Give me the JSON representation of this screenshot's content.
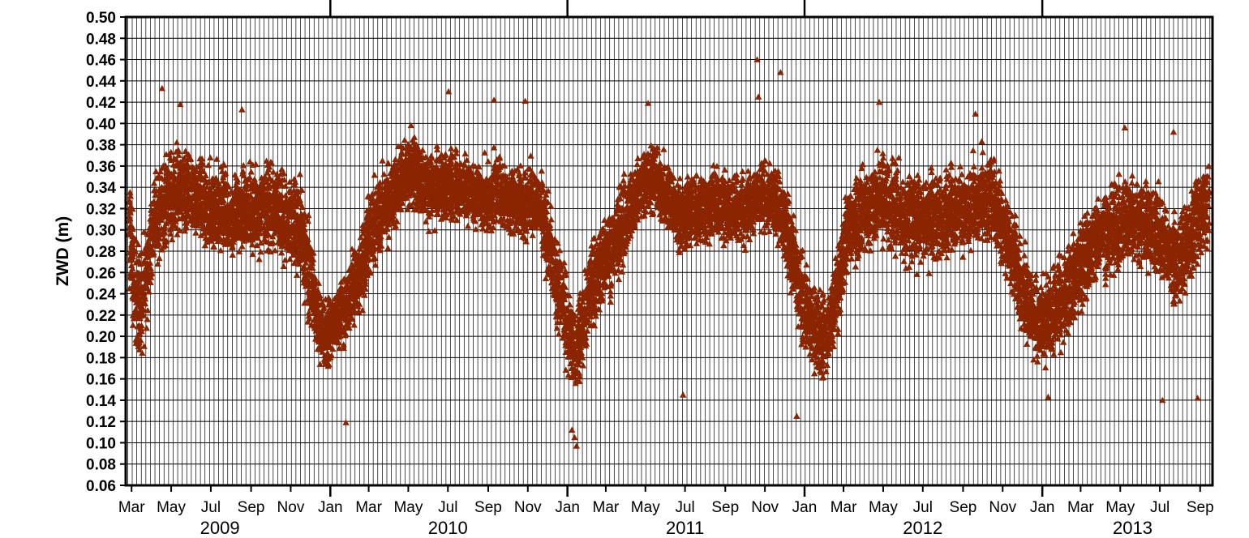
{
  "chart_data": {
    "type": "scatter",
    "ylabel": "ZWD (m)",
    "ylim": [
      0.06,
      0.5
    ],
    "yticks": [
      "0.06",
      "0.08",
      "0.10",
      "0.12",
      "0.14",
      "0.16",
      "0.18",
      "0.20",
      "0.22",
      "0.24",
      "0.26",
      "0.28",
      "0.30",
      "0.32",
      "0.34",
      "0.36",
      "0.38",
      "0.40",
      "0.42",
      "0.44",
      "0.46",
      "0.48",
      "0.50"
    ],
    "xlim": [
      "2009-02-20",
      "2013-09-20"
    ],
    "month_ticks": [
      {
        "date": "2009-03-01",
        "label": "Mar"
      },
      {
        "date": "2009-05-01",
        "label": "May"
      },
      {
        "date": "2009-07-01",
        "label": "Jul"
      },
      {
        "date": "2009-09-01",
        "label": "Sep"
      },
      {
        "date": "2009-11-01",
        "label": "Nov"
      },
      {
        "date": "2010-01-01",
        "label": "Jan"
      },
      {
        "date": "2010-03-01",
        "label": "Mar"
      },
      {
        "date": "2010-05-01",
        "label": "May"
      },
      {
        "date": "2010-07-01",
        "label": "Jul"
      },
      {
        "date": "2010-09-01",
        "label": "Sep"
      },
      {
        "date": "2010-11-01",
        "label": "Nov"
      },
      {
        "date": "2011-01-01",
        "label": "Jan"
      },
      {
        "date": "2011-03-01",
        "label": "Mar"
      },
      {
        "date": "2011-05-01",
        "label": "May"
      },
      {
        "date": "2011-07-01",
        "label": "Jul"
      },
      {
        "date": "2011-09-01",
        "label": "Sep"
      },
      {
        "date": "2011-11-01",
        "label": "Nov"
      },
      {
        "date": "2012-01-01",
        "label": "Jan"
      },
      {
        "date": "2012-03-01",
        "label": "Mar"
      },
      {
        "date": "2012-05-01",
        "label": "May"
      },
      {
        "date": "2012-07-01",
        "label": "Jul"
      },
      {
        "date": "2012-09-01",
        "label": "Sep"
      },
      {
        "date": "2012-11-01",
        "label": "Nov"
      },
      {
        "date": "2013-01-01",
        "label": "Jan"
      },
      {
        "date": "2013-03-01",
        "label": "Mar"
      },
      {
        "date": "2013-05-01",
        "label": "May"
      },
      {
        "date": "2013-07-01",
        "label": "Jul"
      },
      {
        "date": "2013-09-01",
        "label": "Sep"
      }
    ],
    "year_labels": [
      {
        "date": "2009-07-15",
        "label": "2009"
      },
      {
        "date": "2010-07-01",
        "label": "2010"
      },
      {
        "date": "2011-07-01",
        "label": "2011"
      },
      {
        "date": "2012-07-01",
        "label": "2012"
      },
      {
        "date": "2013-05-20",
        "label": "2013"
      }
    ],
    "grid": true,
    "marker": "triangle",
    "marker_color": "#8b2500",
    "series": [
      {
        "x": [
          "2009-02-25",
          "2009-03-05",
          "2009-03-15",
          "2009-03-25",
          "2009-04-05",
          "2009-04-15",
          "2009-04-25",
          "2009-05-05",
          "2009-05-15",
          "2009-05-25",
          "2009-06-05",
          "2009-06-15",
          "2009-06-25",
          "2009-07-05",
          "2009-07-15",
          "2009-07-25",
          "2009-08-05",
          "2009-08-15",
          "2009-08-25",
          "2009-09-05",
          "2009-09-15",
          "2009-09-25",
          "2009-10-05",
          "2009-10-15",
          "2009-10-25",
          "2009-11-05",
          "2009-11-15",
          "2009-11-25",
          "2009-12-05",
          "2009-12-15",
          "2009-12-25",
          "2010-01-05",
          "2010-01-15",
          "2010-01-25",
          "2010-02-05",
          "2010-02-15",
          "2010-02-25",
          "2010-03-05",
          "2010-03-15",
          "2010-03-25",
          "2010-04-05",
          "2010-04-15",
          "2010-04-25",
          "2010-05-05",
          "2010-05-15",
          "2010-05-25",
          "2010-06-05",
          "2010-06-15",
          "2010-06-25",
          "2010-07-05",
          "2010-07-15",
          "2010-07-25",
          "2010-08-05",
          "2010-08-15",
          "2010-08-25",
          "2010-09-05",
          "2010-09-15",
          "2010-09-25",
          "2010-10-05",
          "2010-10-15",
          "2010-10-25",
          "2010-11-05",
          "2010-11-15",
          "2010-11-25",
          "2010-12-05",
          "2010-12-15",
          "2010-12-25",
          "2011-01-05",
          "2011-01-15",
          "2011-01-25",
          "2011-02-05",
          "2011-02-15",
          "2011-02-25",
          "2011-03-05",
          "2011-03-15",
          "2011-03-25",
          "2011-04-05",
          "2011-04-15",
          "2011-04-25",
          "2011-05-05",
          "2011-05-15",
          "2011-05-25",
          "2011-06-05",
          "2011-06-15",
          "2011-06-25",
          "2011-07-05",
          "2011-07-15",
          "2011-07-25",
          "2011-08-05",
          "2011-08-15",
          "2011-08-25",
          "2011-09-05",
          "2011-09-15",
          "2011-09-25",
          "2011-10-05",
          "2011-10-15",
          "2011-10-25",
          "2011-11-05",
          "2011-11-15",
          "2011-11-25",
          "2011-12-05",
          "2011-12-15",
          "2011-12-25",
          "2012-01-05",
          "2012-01-15",
          "2012-01-25",
          "2012-02-05",
          "2012-02-15",
          "2012-02-25",
          "2012-03-05",
          "2012-03-15",
          "2012-03-25",
          "2012-04-05",
          "2012-04-15",
          "2012-04-25",
          "2012-05-05",
          "2012-05-15",
          "2012-05-25",
          "2012-06-05",
          "2012-06-15",
          "2012-06-25",
          "2012-07-05",
          "2012-07-15",
          "2012-07-25",
          "2012-08-05",
          "2012-08-15",
          "2012-08-25",
          "2012-09-05",
          "2012-09-15",
          "2012-09-25",
          "2012-10-05",
          "2012-10-15",
          "2012-10-25",
          "2012-11-05",
          "2012-11-15",
          "2012-11-25",
          "2012-12-05",
          "2012-12-15",
          "2012-12-25",
          "2013-01-05",
          "2013-01-15",
          "2013-01-25",
          "2013-02-05",
          "2013-02-15",
          "2013-02-25",
          "2013-03-05",
          "2013-03-15",
          "2013-03-25",
          "2013-04-05",
          "2013-04-15",
          "2013-04-25",
          "2013-05-05",
          "2013-05-15",
          "2013-05-25",
          "2013-06-05",
          "2013-06-15",
          "2013-06-25",
          "2013-07-05",
          "2013-07-15",
          "2013-07-25",
          "2013-08-05",
          "2013-08-15",
          "2013-08-25",
          "2013-09-05",
          "2013-09-15"
        ],
        "y_center": [
          0.3,
          0.25,
          0.23,
          0.26,
          0.31,
          0.32,
          0.33,
          0.33,
          0.34,
          0.33,
          0.33,
          0.33,
          0.32,
          0.32,
          0.32,
          0.32,
          0.31,
          0.32,
          0.32,
          0.32,
          0.32,
          0.32,
          0.32,
          0.32,
          0.31,
          0.31,
          0.3,
          0.27,
          0.24,
          0.21,
          0.2,
          0.21,
          0.22,
          0.23,
          0.24,
          0.26,
          0.28,
          0.3,
          0.31,
          0.32,
          0.33,
          0.34,
          0.35,
          0.36,
          0.35,
          0.34,
          0.34,
          0.34,
          0.34,
          0.34,
          0.34,
          0.34,
          0.34,
          0.33,
          0.33,
          0.33,
          0.34,
          0.33,
          0.33,
          0.33,
          0.32,
          0.33,
          0.33,
          0.31,
          0.28,
          0.25,
          0.23,
          0.2,
          0.19,
          0.21,
          0.24,
          0.26,
          0.27,
          0.28,
          0.29,
          0.3,
          0.32,
          0.33,
          0.34,
          0.35,
          0.35,
          0.34,
          0.33,
          0.32,
          0.31,
          0.32,
          0.32,
          0.32,
          0.32,
          0.33,
          0.32,
          0.32,
          0.32,
          0.32,
          0.32,
          0.33,
          0.33,
          0.33,
          0.33,
          0.32,
          0.3,
          0.27,
          0.24,
          0.22,
          0.21,
          0.2,
          0.2,
          0.23,
          0.26,
          0.29,
          0.31,
          0.31,
          0.32,
          0.32,
          0.33,
          0.33,
          0.32,
          0.32,
          0.31,
          0.31,
          0.31,
          0.31,
          0.31,
          0.31,
          0.31,
          0.32,
          0.32,
          0.32,
          0.32,
          0.33,
          0.33,
          0.33,
          0.32,
          0.3,
          0.28,
          0.26,
          0.24,
          0.23,
          0.21,
          0.21,
          0.22,
          0.23,
          0.24,
          0.25,
          0.26,
          0.27,
          0.28,
          0.29,
          0.3,
          0.3,
          0.3,
          0.31,
          0.31,
          0.31,
          0.31,
          0.3,
          0.3,
          0.29,
          0.28,
          0.27,
          0.28,
          0.29,
          0.31,
          0.32,
          0.32
        ],
        "y_spread": [
          0.06,
          0.07,
          0.06,
          0.06,
          0.05,
          0.05,
          0.05,
          0.05,
          0.05,
          0.05,
          0.05,
          0.05,
          0.05,
          0.05,
          0.05,
          0.05,
          0.05,
          0.05,
          0.05,
          0.05,
          0.05,
          0.05,
          0.05,
          0.05,
          0.05,
          0.05,
          0.06,
          0.06,
          0.05,
          0.04,
          0.04,
          0.04,
          0.04,
          0.04,
          0.05,
          0.05,
          0.05,
          0.05,
          0.05,
          0.05,
          0.04,
          0.04,
          0.04,
          0.04,
          0.04,
          0.04,
          0.04,
          0.04,
          0.04,
          0.04,
          0.04,
          0.04,
          0.04,
          0.04,
          0.04,
          0.04,
          0.04,
          0.04,
          0.04,
          0.04,
          0.04,
          0.04,
          0.04,
          0.05,
          0.05,
          0.05,
          0.05,
          0.05,
          0.05,
          0.05,
          0.05,
          0.05,
          0.05,
          0.05,
          0.05,
          0.05,
          0.04,
          0.04,
          0.04,
          0.04,
          0.04,
          0.04,
          0.04,
          0.04,
          0.04,
          0.04,
          0.04,
          0.04,
          0.04,
          0.04,
          0.04,
          0.04,
          0.04,
          0.04,
          0.04,
          0.04,
          0.04,
          0.04,
          0.04,
          0.04,
          0.05,
          0.05,
          0.05,
          0.05,
          0.05,
          0.05,
          0.05,
          0.05,
          0.05,
          0.05,
          0.05,
          0.05,
          0.05,
          0.05,
          0.05,
          0.05,
          0.05,
          0.05,
          0.05,
          0.05,
          0.05,
          0.05,
          0.05,
          0.05,
          0.05,
          0.05,
          0.05,
          0.05,
          0.05,
          0.05,
          0.05,
          0.05,
          0.05,
          0.05,
          0.05,
          0.05,
          0.05,
          0.05,
          0.05,
          0.05,
          0.05,
          0.05,
          0.05,
          0.05,
          0.05,
          0.05,
          0.05,
          0.05,
          0.05,
          0.05,
          0.05,
          0.05,
          0.05,
          0.05,
          0.05,
          0.05,
          0.05,
          0.05,
          0.05,
          0.05,
          0.05,
          0.05,
          0.05,
          0.05,
          0.05
        ]
      }
    ],
    "outliers": [
      {
        "date": "2009-04-17",
        "y": 0.433
      },
      {
        "date": "2009-05-15",
        "y": 0.418
      },
      {
        "date": "2009-08-18",
        "y": 0.413
      },
      {
        "date": "2010-01-25",
        "y": 0.119
      },
      {
        "date": "2010-07-02",
        "y": 0.43
      },
      {
        "date": "2010-09-10",
        "y": 0.422
      },
      {
        "date": "2010-10-28",
        "y": 0.421
      },
      {
        "date": "2011-01-15",
        "y": 0.097
      },
      {
        "date": "2011-01-12",
        "y": 0.105
      },
      {
        "date": "2011-01-08",
        "y": 0.112
      },
      {
        "date": "2011-05-05",
        "y": 0.419
      },
      {
        "date": "2011-06-28",
        "y": 0.145
      },
      {
        "date": "2011-10-20",
        "y": 0.46
      },
      {
        "date": "2011-10-22",
        "y": 0.425
      },
      {
        "date": "2011-11-25",
        "y": 0.448
      },
      {
        "date": "2011-12-20",
        "y": 0.125
      },
      {
        "date": "2012-04-25",
        "y": 0.42
      },
      {
        "date": "2012-09-20",
        "y": 0.409
      },
      {
        "date": "2013-01-10",
        "y": 0.143
      },
      {
        "date": "2013-05-08",
        "y": 0.396
      },
      {
        "date": "2013-07-22",
        "y": 0.392
      },
      {
        "date": "2013-07-05",
        "y": 0.14
      },
      {
        "date": "2013-08-28",
        "y": 0.142
      }
    ]
  }
}
